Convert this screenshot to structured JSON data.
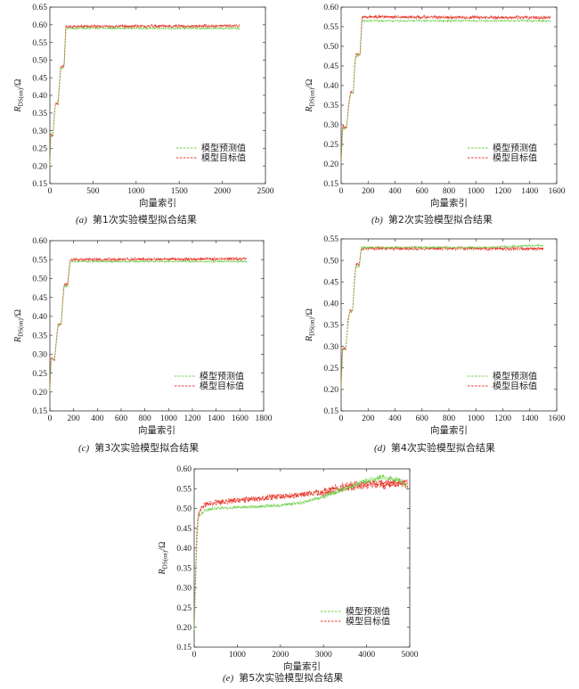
{
  "colors": {
    "predicted": "#6fcf4a",
    "target": "#e83a2e",
    "axis": "#333333"
  },
  "chart_data": [
    {
      "type": "line",
      "panel_label": "(a)",
      "caption": "第1次实验模型拟合结果",
      "xlabel": "向量索引",
      "ylabel": "R_DS(on)/Ω",
      "xlim": [
        0,
        2500
      ],
      "ylim": [
        0.15,
        0.65
      ],
      "xticks": [
        "0",
        "500",
        "1000",
        "1500",
        "2000",
        "2500"
      ],
      "yticks": [
        "0.15",
        "0.20",
        "0.25",
        "0.30",
        "0.35",
        "0.40",
        "0.45",
        "0.50",
        "0.55",
        "0.60",
        "0.65"
      ],
      "legend_position": "lower right",
      "series": [
        {
          "name": "模型预测值",
          "style": "dashed",
          "color": "#6fcf4a",
          "points": [
            [
              0,
              0.2
            ],
            [
              10,
              0.285
            ],
            [
              35,
              0.29
            ],
            [
              50,
              0.33
            ],
            [
              65,
              0.375
            ],
            [
              95,
              0.385
            ],
            [
              110,
              0.42
            ],
            [
              125,
              0.475
            ],
            [
              165,
              0.48
            ],
            [
              185,
              0.59
            ],
            [
              2200,
              0.59
            ]
          ]
        },
        {
          "name": "模型目标值",
          "style": "dashed",
          "color": "#e83a2e",
          "points": [
            [
              0,
              0.21
            ],
            [
              10,
              0.29
            ],
            [
              35,
              0.285
            ],
            [
              50,
              0.34
            ],
            [
              65,
              0.38
            ],
            [
              95,
              0.375
            ],
            [
              110,
              0.43
            ],
            [
              125,
              0.48
            ],
            [
              165,
              0.485
            ],
            [
              185,
              0.595
            ],
            [
              2200,
              0.597
            ]
          ]
        }
      ]
    },
    {
      "type": "line",
      "panel_label": "(b)",
      "caption": "第2次实验模型拟合结果",
      "xlabel": "向量索引",
      "ylabel": "R_DS(on)/Ω",
      "xlim": [
        0,
        1600
      ],
      "ylim": [
        0.15,
        0.6
      ],
      "xticks": [
        "0",
        "200",
        "400",
        "600",
        "800",
        "1000",
        "1200",
        "1400",
        "1600"
      ],
      "yticks": [
        "0.15",
        "0.20",
        "0.25",
        "0.30",
        "0.35",
        "0.40",
        "0.45",
        "0.50",
        "0.55",
        "0.60"
      ],
      "legend_position": "lower right",
      "series": [
        {
          "name": "模型预测值",
          "style": "dashed",
          "color": "#6fcf4a",
          "points": [
            [
              0,
              0.2
            ],
            [
              10,
              0.29
            ],
            [
              40,
              0.295
            ],
            [
              55,
              0.34
            ],
            [
              70,
              0.38
            ],
            [
              90,
              0.385
            ],
            [
              100,
              0.44
            ],
            [
              110,
              0.475
            ],
            [
              140,
              0.48
            ],
            [
              155,
              0.565
            ],
            [
              1560,
              0.565
            ]
          ]
        },
        {
          "name": "模型目标值",
          "style": "dashed",
          "color": "#e83a2e",
          "points": [
            [
              0,
              0.21
            ],
            [
              10,
              0.295
            ],
            [
              40,
              0.29
            ],
            [
              55,
              0.35
            ],
            [
              70,
              0.385
            ],
            [
              90,
              0.38
            ],
            [
              100,
              0.45
            ],
            [
              110,
              0.48
            ],
            [
              140,
              0.478
            ],
            [
              155,
              0.575
            ],
            [
              1560,
              0.573
            ]
          ]
        }
      ]
    },
    {
      "type": "line",
      "panel_label": "(c)",
      "caption": "第3次实验模型拟合结果",
      "xlabel": "向量索引",
      "ylabel": "R_DS(on)/Ω",
      "xlim": [
        0,
        1800
      ],
      "ylim": [
        0.15,
        0.6
      ],
      "xticks": [
        "0",
        "200",
        "400",
        "600",
        "800",
        "1000",
        "1200",
        "1400",
        "1600",
        "1800"
      ],
      "yticks": [
        "0.15",
        "0.20",
        "0.25",
        "0.30",
        "0.35",
        "0.40",
        "0.45",
        "0.50",
        "0.55",
        "0.60"
      ],
      "legend_position": "lower right",
      "series": [
        {
          "name": "模型预测值",
          "style": "dashed",
          "color": "#6fcf4a",
          "points": [
            [
              0,
              0.2
            ],
            [
              10,
              0.285
            ],
            [
              40,
              0.29
            ],
            [
              55,
              0.33
            ],
            [
              70,
              0.375
            ],
            [
              95,
              0.38
            ],
            [
              110,
              0.44
            ],
            [
              120,
              0.48
            ],
            [
              150,
              0.48
            ],
            [
              170,
              0.545
            ],
            [
              1660,
              0.545
            ]
          ]
        },
        {
          "name": "模型目标值",
          "style": "dashed",
          "color": "#e83a2e",
          "points": [
            [
              0,
              0.21
            ],
            [
              10,
              0.29
            ],
            [
              40,
              0.285
            ],
            [
              55,
              0.34
            ],
            [
              70,
              0.38
            ],
            [
              95,
              0.375
            ],
            [
              110,
              0.45
            ],
            [
              120,
              0.485
            ],
            [
              150,
              0.485
            ],
            [
              170,
              0.55
            ],
            [
              1660,
              0.552
            ]
          ]
        }
      ]
    },
    {
      "type": "line",
      "panel_label": "(d)",
      "caption": "第4次实验模型拟合结果",
      "xlabel": "向量索引",
      "ylabel": "R_DS(on)/Ω",
      "xlim": [
        0,
        1600
      ],
      "ylim": [
        0.15,
        0.55
      ],
      "xticks": [
        "0",
        "200",
        "400",
        "600",
        "800",
        "1000",
        "1200",
        "1400",
        "1600"
      ],
      "yticks": [
        "0.15",
        "0.20",
        "0.25",
        "0.30",
        "0.35",
        "0.40",
        "0.45",
        "0.50",
        "0.55"
      ],
      "legend_position": "lower right",
      "series": [
        {
          "name": "模型预测值",
          "style": "dashed",
          "color": "#6fcf4a",
          "points": [
            [
              0,
              0.2
            ],
            [
              10,
              0.29
            ],
            [
              35,
              0.3
            ],
            [
              50,
              0.35
            ],
            [
              65,
              0.38
            ],
            [
              85,
              0.385
            ],
            [
              100,
              0.45
            ],
            [
              110,
              0.485
            ],
            [
              135,
              0.485
            ],
            [
              150,
              0.53
            ],
            [
              1000,
              0.53
            ],
            [
              1500,
              0.535
            ]
          ]
        },
        {
          "name": "模型目标值",
          "style": "dashed",
          "color": "#e83a2e",
          "points": [
            [
              0,
              0.21
            ],
            [
              10,
              0.295
            ],
            [
              35,
              0.295
            ],
            [
              50,
              0.36
            ],
            [
              65,
              0.385
            ],
            [
              85,
              0.38
            ],
            [
              100,
              0.46
            ],
            [
              110,
              0.49
            ],
            [
              135,
              0.49
            ],
            [
              150,
              0.528
            ],
            [
              1000,
              0.528
            ],
            [
              1500,
              0.527
            ]
          ]
        }
      ]
    },
    {
      "type": "line",
      "panel_label": "(e)",
      "caption": "第5次实验模型拟合结果",
      "xlabel": "向量索引",
      "ylabel": "R_DS(on)/Ω",
      "xlim": [
        0,
        5000
      ],
      "ylim": [
        0.15,
        0.6
      ],
      "xticks": [
        "0",
        "1000",
        "2000",
        "3000",
        "4000",
        "5000"
      ],
      "yticks": [
        "0.15",
        "0.20",
        "0.25",
        "0.30",
        "0.35",
        "0.40",
        "0.45",
        "0.50",
        "0.55",
        "0.60"
      ],
      "legend_position": "lower right",
      "series": [
        {
          "name": "模型预测值",
          "style": "dashed",
          "color": "#6fcf4a",
          "points": [
            [
              0,
              0.19
            ],
            [
              30,
              0.3
            ],
            [
              60,
              0.4
            ],
            [
              100,
              0.48
            ],
            [
              250,
              0.495
            ],
            [
              500,
              0.5
            ],
            [
              1000,
              0.503
            ],
            [
              1500,
              0.505
            ],
            [
              2000,
              0.508
            ],
            [
              2500,
              0.515
            ],
            [
              3000,
              0.53
            ],
            [
              3500,
              0.55
            ],
            [
              4000,
              0.57
            ],
            [
              4400,
              0.58
            ],
            [
              4800,
              0.57
            ],
            [
              4950,
              0.55
            ]
          ]
        },
        {
          "name": "模型目标值",
          "style": "dashed",
          "color": "#e83a2e",
          "points": [
            [
              0,
              0.21
            ],
            [
              30,
              0.33
            ],
            [
              60,
              0.44
            ],
            [
              100,
              0.49
            ],
            [
              250,
              0.51
            ],
            [
              500,
              0.515
            ],
            [
              1000,
              0.52
            ],
            [
              1500,
              0.525
            ],
            [
              2000,
              0.53
            ],
            [
              2500,
              0.535
            ],
            [
              3000,
              0.54
            ],
            [
              3500,
              0.555
            ],
            [
              4000,
              0.56
            ],
            [
              4400,
              0.56
            ],
            [
              4800,
              0.565
            ],
            [
              4950,
              0.56
            ]
          ]
        }
      ]
    }
  ]
}
